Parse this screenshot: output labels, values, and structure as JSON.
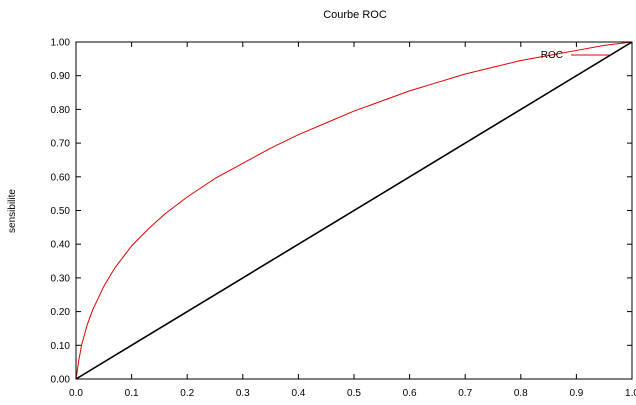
{
  "chart_data": {
    "type": "line",
    "title": "Courbe ROC",
    "xlabel": "",
    "ylabel": "sensibilite",
    "xlim": [
      0,
      1
    ],
    "ylim": [
      0,
      1
    ],
    "x_ticks": [
      "0.0",
      "0.1",
      "0.2",
      "0.3",
      "0.4",
      "0.5",
      "0.6",
      "0.7",
      "0.8",
      "0.9",
      "1.0"
    ],
    "y_ticks": [
      "0.00",
      "0.10",
      "0.20",
      "0.30",
      "0.40",
      "0.50",
      "0.60",
      "0.70",
      "0.80",
      "0.90",
      "1.00"
    ],
    "grid": false,
    "legend": {
      "position": "top-right",
      "entries": [
        "ROC"
      ]
    },
    "series": [
      {
        "name": "ROC",
        "color": "#e00000",
        "x": [
          0,
          0.005,
          0.01,
          0.02,
          0.03,
          0.05,
          0.07,
          0.1,
          0.13,
          0.16,
          0.2,
          0.25,
          0.3,
          0.35,
          0.4,
          0.45,
          0.5,
          0.55,
          0.6,
          0.65,
          0.7,
          0.75,
          0.8,
          0.85,
          0.9,
          0.95,
          1.0
        ],
        "y": [
          0,
          0.055,
          0.1,
          0.16,
          0.205,
          0.275,
          0.33,
          0.395,
          0.445,
          0.49,
          0.54,
          0.595,
          0.64,
          0.685,
          0.725,
          0.76,
          0.795,
          0.825,
          0.855,
          0.88,
          0.905,
          0.925,
          0.945,
          0.96,
          0.975,
          0.99,
          1.0
        ]
      },
      {
        "color": "#000000",
        "x": [
          0,
          1
        ],
        "y": [
          0,
          1
        ]
      }
    ]
  }
}
